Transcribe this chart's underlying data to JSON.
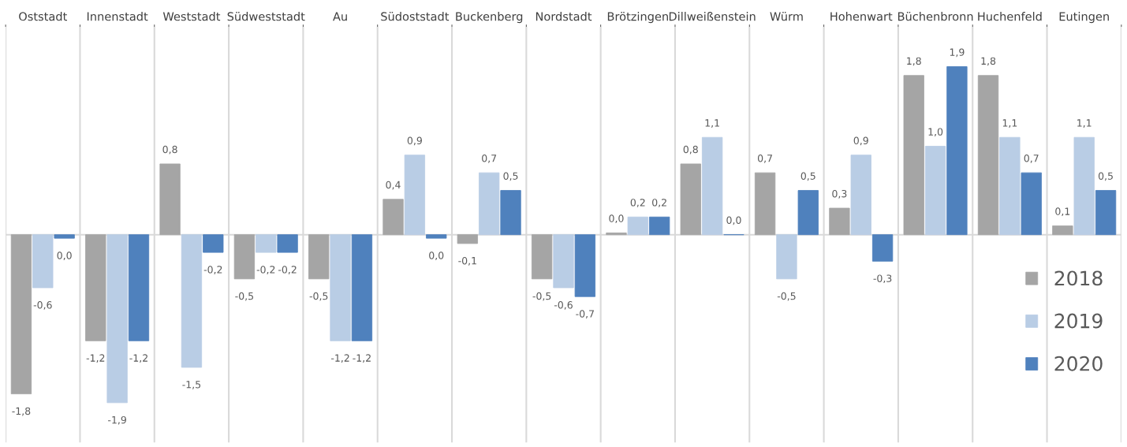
{
  "chart_data": {
    "type": "bar",
    "categories": [
      "Oststadt",
      "Innenstadt",
      "Weststadt",
      "Südweststadt",
      "Au",
      "Südoststadt",
      "Buckenberg",
      "Nordstadt",
      "Brötzingen",
      "Dillweißenstein",
      "Würm",
      "Hohenwart",
      "Büchenbronn",
      "Huchenfeld",
      "Eutingen"
    ],
    "series": [
      {
        "name": "2018",
        "color": "#a5a5a5",
        "values": [
          -1.8,
          -1.2,
          0.8,
          -0.5,
          -0.5,
          0.4,
          -0.1,
          -0.5,
          0.02,
          0.8,
          0.7,
          0.3,
          1.8,
          1.8,
          0.1
        ],
        "value_labels": [
          "-1,8",
          "-1,2",
          "0,8",
          "-0,5",
          "-0,5",
          "0,4",
          "-0,1",
          "-0,5",
          "0,0",
          "0,8",
          "0,7",
          "0,3",
          "1,8",
          "1,8",
          "0,1"
        ]
      },
      {
        "name": "2019",
        "color": "#b9cde5",
        "values": [
          -0.6,
          -1.9,
          -1.5,
          -0.2,
          -1.2,
          0.9,
          0.7,
          -0.6,
          0.2,
          1.1,
          -0.5,
          0.9,
          1.0,
          1.1,
          1.1
        ],
        "value_labels": [
          "-0,6",
          "-1,9",
          "-1,5",
          "-0,2",
          "-1,2",
          "0,9",
          "0,7",
          "-0,6",
          "0,2",
          "1,1",
          "-0,5",
          "0,9",
          "1,0",
          "1,1",
          "1,1"
        ]
      },
      {
        "name": "2020",
        "color": "#4f81bd",
        "values": [
          -0.04,
          -1.2,
          -0.2,
          -0.2,
          -1.2,
          -0.04,
          0.5,
          -0.7,
          0.2,
          0.0,
          0.5,
          -0.3,
          1.9,
          0.7,
          0.5
        ],
        "value_labels": [
          "0,0",
          "-1,2",
          "-0,2",
          "-0,2",
          "-1,2",
          "0,0",
          "0,5",
          "-0,7",
          "0,2",
          "0,0",
          "0,5",
          "-0,3",
          "1,9",
          "0,7",
          "0,5"
        ]
      }
    ],
    "grid": "x",
    "legend": "bottom right"
  }
}
